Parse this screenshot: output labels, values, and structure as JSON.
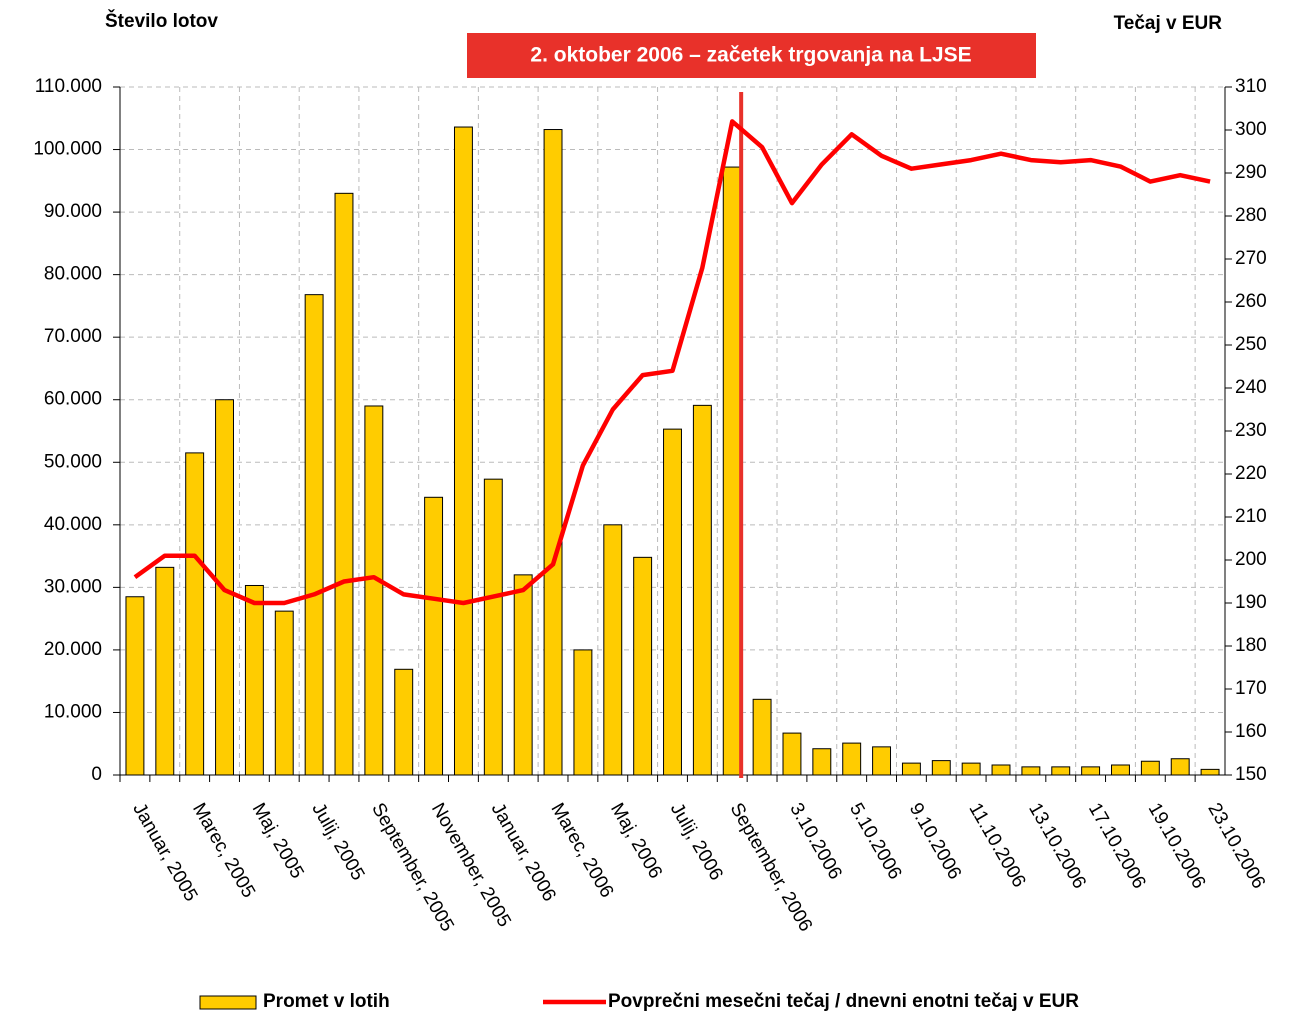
{
  "chart_data": {
    "type": "bar_line",
    "ylabel": "Število lotov",
    "y2label": "Tečaj v EUR",
    "annotation": "2. oktober 2006 – začetek trgovanja na LJSE",
    "categories": [
      "Januar, 2005",
      null,
      "Marec, 2005",
      null,
      "Maj, 2005",
      null,
      "Julij, 2005",
      null,
      "September, 2005",
      null,
      "November, 2005",
      null,
      "Januar, 2006",
      null,
      "Marec, 2006",
      null,
      "Maj, 2006",
      null,
      "Julij, 2006",
      null,
      "September, 2006",
      null,
      "3.10.2006",
      null,
      "5.10.2006",
      null,
      "9.10.2006",
      null,
      "11.10.2006",
      null,
      "13.10.2006",
      null,
      "17.10.2006",
      null,
      "19.10.2006",
      null,
      "23.10.2006"
    ],
    "series": [
      {
        "name": "Promet v lotih",
        "color": "#ffcc00",
        "values": [
          28500,
          33200,
          51500,
          60000,
          30300,
          26200,
          76800,
          93000,
          59000,
          16900,
          44400,
          103600,
          47300,
          32000,
          103200,
          20000,
          40000,
          34800,
          55300,
          59100,
          97200,
          12100,
          6700,
          4200,
          5100,
          4500,
          1900,
          2300,
          1900,
          1600,
          1300,
          1300,
          1300,
          1600,
          2200,
          2600,
          900
        ]
      },
      {
        "name": "Povprečni mesečni tečaj / dnevni enotni tečaj v EUR",
        "color": "#ff0000",
        "axis": "y2",
        "values": [
          196,
          201,
          201,
          193,
          190,
          190,
          192,
          195,
          196,
          192,
          191,
          190,
          191.5,
          193,
          199,
          222,
          235,
          243,
          244,
          268,
          302,
          296,
          283,
          292,
          299,
          294,
          291,
          292,
          293,
          294.5,
          293,
          292.5,
          293,
          291.5,
          288,
          289.5,
          288
        ]
      }
    ],
    "ylim": [
      0,
      110000
    ],
    "yticks": [
      0,
      {
        "value": 10000,
        "label": "10.000"
      },
      {
        "value": 20000,
        "label": "20.000"
      },
      {
        "value": 30000,
        "label": "30.000"
      },
      {
        "value": 40000,
        "label": "40.000"
      },
      {
        "value": 50000,
        "label": "50.000"
      },
      {
        "value": 60000,
        "label": "60.000"
      },
      {
        "value": 70000,
        "label": "70.000"
      },
      {
        "value": 80000,
        "label": "80.000"
      },
      {
        "value": 90000,
        "label": "90.000"
      },
      {
        "value": 100000,
        "label": "100.000"
      },
      {
        "value": 110000,
        "label": "110.000"
      }
    ],
    "y2lim": [
      150,
      310
    ],
    "y2ticks": [
      150,
      160,
      170,
      180,
      190,
      200,
      210,
      220,
      230,
      240,
      250,
      260,
      270,
      280,
      290,
      300,
      310
    ],
    "grid": true
  }
}
